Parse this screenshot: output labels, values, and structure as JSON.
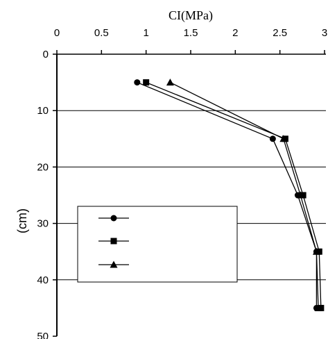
{
  "chart_data": {
    "type": "line",
    "xlabel": "CI(MPa)",
    "ylabel": "(cm)",
    "x_axis_position": "top",
    "y_axis_inverted": true,
    "xlim": [
      0,
      3
    ],
    "ylim": [
      0,
      50
    ],
    "x_ticks": [
      "0",
      "0.5",
      "1",
      "1.5",
      "2",
      "2.5",
      "3"
    ],
    "y_ticks": [
      "0",
      "10",
      "20",
      "30",
      "40",
      "50"
    ],
    "grid": "horizontal",
    "legend": {
      "placement": "center-left",
      "has_text": false
    },
    "series": [
      {
        "marker": "circle",
        "color": "#000000",
        "x": [
          0.9,
          2.42,
          2.7,
          2.91,
          2.91
        ],
        "y": [
          5,
          15,
          25,
          35,
          45
        ]
      },
      {
        "marker": "square",
        "color": "#000000",
        "x": [
          1.0,
          2.56,
          2.76,
          2.94,
          2.96
        ],
        "y": [
          5,
          15,
          25,
          35,
          45
        ]
      },
      {
        "marker": "triangle",
        "color": "#000000",
        "x": [
          1.27,
          2.54,
          2.73,
          2.91,
          2.93
        ],
        "y": [
          5,
          15,
          25,
          35,
          45
        ]
      }
    ]
  }
}
